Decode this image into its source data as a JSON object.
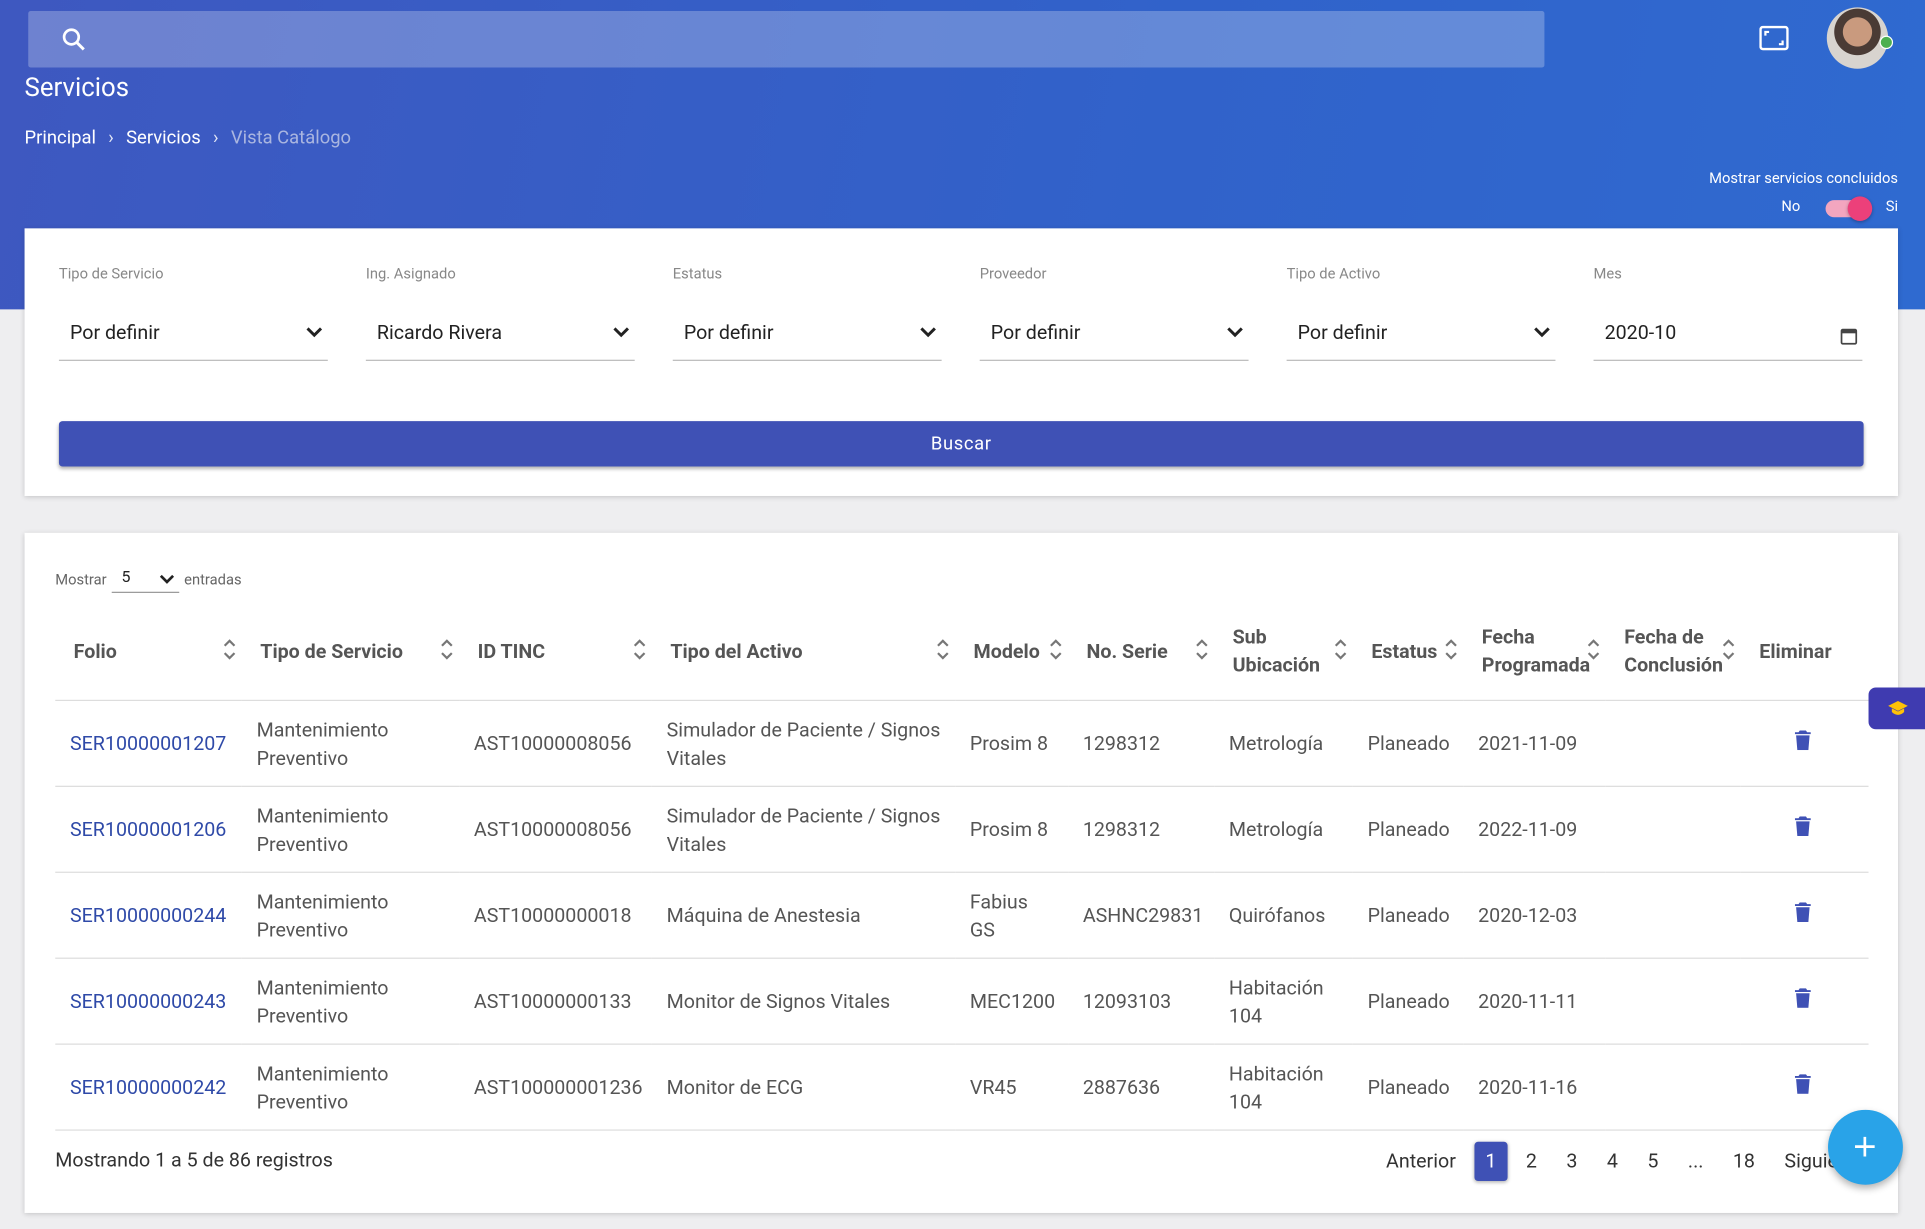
{
  "header": {
    "title": "Servicios",
    "breadcrumb": [
      "Principal",
      "Servicios",
      "Vista Catálogo"
    ],
    "toggle": {
      "label": "Mostrar servicios concluidos",
      "off": "No",
      "on": "Si"
    }
  },
  "filters": [
    {
      "label": "Tipo de Servicio",
      "value": "Por definir"
    },
    {
      "label": "Ing. Asignado",
      "value": "Ricardo Rivera"
    },
    {
      "label": "Estatus",
      "value": "Por definir"
    },
    {
      "label": "Proveedor",
      "value": "Por definir"
    },
    {
      "label": "Tipo de Activo",
      "value": "Por definir"
    },
    {
      "label": "Mes",
      "value": "2020-10"
    }
  ],
  "search_button": "Buscar",
  "table": {
    "show_label": "Mostrar",
    "show_value": "5",
    "entries_label": "entradas",
    "columns": [
      "Folio",
      "Tipo de Servicio",
      "ID TINC",
      "Tipo del Activo",
      "Modelo",
      "No. Serie",
      "Sub Ubicación",
      "Estatus",
      "Fecha Programada",
      "Fecha de Conclusión",
      "Eliminar"
    ],
    "rows": [
      [
        "SER10000001207",
        "Mantenimiento Preventivo",
        "AST10000008056",
        "Simulador de Paciente / Signos Vitales",
        "Prosim 8",
        "1298312",
        "Metrología",
        "Planeado",
        "2021-11-09"
      ],
      [
        "SER10000001206",
        "Mantenimiento Preventivo",
        "AST10000008056",
        "Simulador de Paciente / Signos Vitales",
        "Prosim 8",
        "1298312",
        "Metrología",
        "Planeado",
        "2022-11-09"
      ],
      [
        "SER10000000244",
        "Mantenimiento Preventivo",
        "AST10000000018",
        "Máquina de Anestesia",
        "Fabius GS",
        "ASHNC29831",
        "Quirófanos",
        "Planeado",
        "2020-12-03"
      ],
      [
        "SER10000000243",
        "Mantenimiento Preventivo",
        "AST10000000133",
        "Monitor de Signos Vitales",
        "MEC1200",
        "12093103",
        "Habitación 104",
        "Planeado",
        "2020-11-11"
      ],
      [
        "SER10000000242",
        "Mantenimiento Preventivo",
        "AST100000001236",
        "Monitor de ECG",
        "VR45",
        "2887636",
        "Habitación 104",
        "Planeado",
        "2020-11-16"
      ]
    ],
    "info": "Mostrando 1 a 5 de 86 registros",
    "pagination": [
      "Anterior",
      "1",
      "2",
      "3",
      "4",
      "5",
      "...",
      "18",
      "Siguiente"
    ]
  }
}
